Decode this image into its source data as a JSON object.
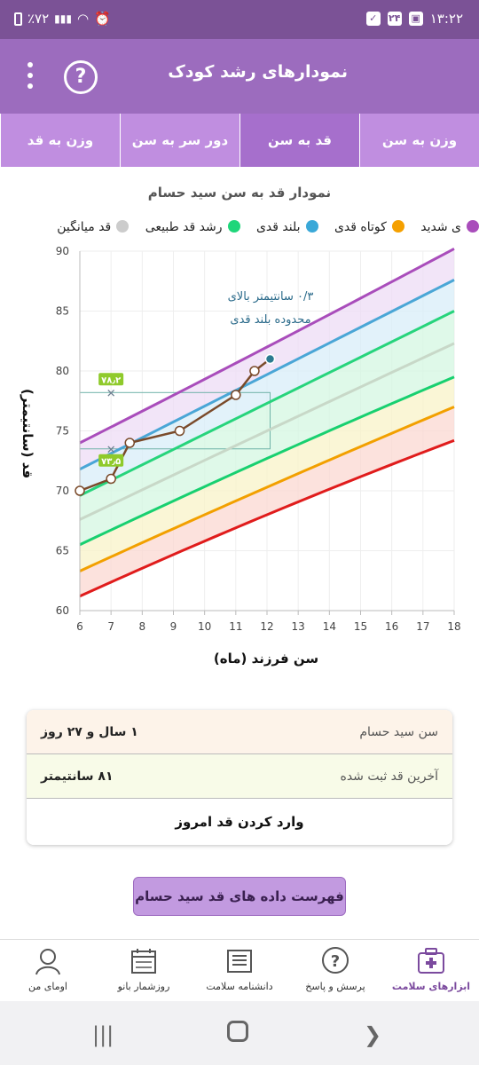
{
  "status": {
    "time": "۱۳:۲۲",
    "notif_count": "۲۴",
    "battery": "٪۷۲"
  },
  "app": {
    "title": "نمودارهای رشد کودک"
  },
  "tabs": [
    {
      "label": "وزن به سن",
      "active": false
    },
    {
      "label": "قد به سن",
      "active": true
    },
    {
      "label": "دور سر به سن",
      "active": false
    },
    {
      "label": "وزن به قد",
      "active": false
    }
  ],
  "chart_data": {
    "type": "line",
    "title": "نمودار قد به سن سید حسام",
    "xlabel": "سن فرزند (ماه)",
    "ylabel": "قد (سانتیمتر)",
    "xlim": [
      6,
      18
    ],
    "ylim": [
      60,
      90
    ],
    "x_ticks": [
      6,
      7,
      8,
      9,
      10,
      11,
      12,
      13,
      14,
      15,
      16,
      17,
      18
    ],
    "y_ticks": [
      60,
      65,
      70,
      75,
      80,
      85,
      90
    ],
    "legend": [
      {
        "label": "ی شدید",
        "color": "#a94dbb"
      },
      {
        "label": "کوتاه قدی",
        "color": "#f5a000"
      },
      {
        "label": "بلند قدی",
        "color": "#3aa8d8"
      },
      {
        "label": "رشد قد طبیعی",
        "color": "#1fd67a"
      },
      {
        "label": "قد میانگین",
        "color": "#cccccc"
      }
    ],
    "curves": [
      {
        "name": "severe_top",
        "color": "#a94dbb",
        "points": [
          [
            6,
            74.0
          ],
          [
            12,
            82.0
          ],
          [
            18,
            90.2
          ]
        ]
      },
      {
        "name": "tall",
        "color": "#4aa6d6",
        "points": [
          [
            6,
            71.8
          ],
          [
            12,
            79.7
          ],
          [
            18,
            87.6
          ]
        ]
      },
      {
        "name": "normal_top",
        "color": "#27d47c",
        "points": [
          [
            6,
            69.6
          ],
          [
            12,
            77.3
          ],
          [
            18,
            85.0
          ]
        ]
      },
      {
        "name": "mean",
        "color": "#c8d8c8",
        "points": [
          [
            6,
            67.6
          ],
          [
            12,
            75.0
          ],
          [
            18,
            82.3
          ]
        ]
      },
      {
        "name": "normal_bottom",
        "color": "#18d070",
        "points": [
          [
            6,
            65.5
          ],
          [
            12,
            72.7
          ],
          [
            18,
            79.5
          ]
        ]
      },
      {
        "name": "short",
        "color": "#f2a000",
        "points": [
          [
            6,
            63.3
          ],
          [
            12,
            70.3
          ],
          [
            18,
            77.0
          ]
        ]
      },
      {
        "name": "severe_short",
        "color": "#e01c1c",
        "points": [
          [
            6,
            61.2
          ],
          [
            12,
            68.0
          ],
          [
            18,
            74.2
          ]
        ]
      }
    ],
    "bands": [
      {
        "from": "severe_top",
        "to": "tall",
        "color": "#eddcf5"
      },
      {
        "from": "tall",
        "to": "normal_top",
        "color": "#d8eef8"
      },
      {
        "from": "normal_top",
        "to": "normal_bottom",
        "color": "#d4f7e2"
      },
      {
        "from": "normal_bottom",
        "to": "short",
        "color": "#f8f3c8"
      },
      {
        "from": "short",
        "to": "severe_short",
        "color": "#fbd8d2"
      }
    ],
    "measurements": [
      {
        "x": 6.0,
        "y": 70.0
      },
      {
        "x": 7.0,
        "y": 71.0
      },
      {
        "x": 7.6,
        "y": 74.0
      },
      {
        "x": 9.2,
        "y": 75.0
      },
      {
        "x": 11.0,
        "y": 78.0
      },
      {
        "x": 11.6,
        "y": 80.0
      },
      {
        "x": 12.1,
        "y": 81.0
      }
    ],
    "range_box": {
      "x": [
        6,
        12.1
      ],
      "y": [
        73.5,
        78.2
      ]
    },
    "markers": [
      {
        "x": 7,
        "y": 78.2,
        "label": "۷۸٫۲"
      },
      {
        "x": 7,
        "y": 73.5,
        "label": "۷۳٫۵"
      }
    ],
    "annotation": [
      "۰/۳ سانتیمتر بالای",
      "محدوده بلند قدی"
    ]
  },
  "info": {
    "age_label": "سن سید حسام",
    "age_value": "۱ سال و ۲۷ روز",
    "height_label": "آخرین قد ثبت شده",
    "height_value": "۸۱ سانتیمتر",
    "enter_today": "وارد کردن قد امروز"
  },
  "list_button": "فهرست داده های قد سید حسام",
  "nav": [
    {
      "label": "ابزارهای سلامت",
      "icon": "health-tools-icon",
      "active": true
    },
    {
      "label": "پرسش و پاسخ",
      "icon": "question-icon",
      "active": false
    },
    {
      "label": "دانشنامه سلامت",
      "icon": "encyclopedia-icon",
      "active": false
    },
    {
      "label": "روزشمار بانو",
      "icon": "calendar-icon",
      "active": false
    },
    {
      "label": "اومای من",
      "icon": "profile-icon",
      "active": false
    }
  ]
}
